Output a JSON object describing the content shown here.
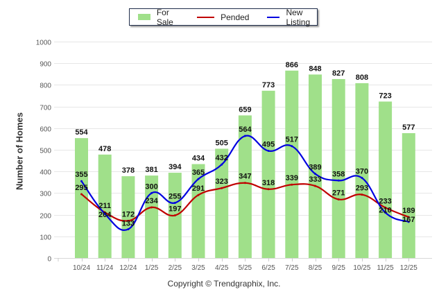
{
  "chart_data": {
    "type": "bar",
    "title": "",
    "xlabel": "",
    "ylabel": "Number of Homes",
    "ylim": [
      0,
      1000
    ],
    "yticks": [
      0,
      100,
      200,
      300,
      400,
      500,
      600,
      700,
      800,
      900,
      1000
    ],
    "grid": true,
    "legend_position": "top-center",
    "categories": [
      "10/24",
      "11/24",
      "12/24",
      "1/25",
      "2/25",
      "3/25",
      "4/25",
      "5/25",
      "6/25",
      "7/25",
      "8/25",
      "9/25",
      "10/25",
      "11/25",
      "12/25"
    ],
    "series": [
      {
        "name": "For Sale",
        "type": "bar",
        "color": "#a0e08a",
        "values": [
          554,
          478,
          378,
          381,
          394,
          434,
          505,
          659,
          773,
          866,
          848,
          827,
          808,
          723,
          577
        ]
      },
      {
        "name": "Pended",
        "type": "line",
        "color": "#c00000",
        "values": [
          295,
          211,
          172,
          234,
          197,
          291,
          323,
          347,
          318,
          339,
          333,
          271,
          293,
          233,
          189
        ]
      },
      {
        "name": "New Listing",
        "type": "line",
        "color": "#0000e0",
        "values": [
          355,
          204,
          133,
          300,
          255,
          365,
          432,
          564,
          495,
          517,
          389,
          358,
          370,
          210,
          167
        ]
      }
    ]
  },
  "footer": {
    "copyright": "Copyright © Trendgraphix, Inc."
  }
}
